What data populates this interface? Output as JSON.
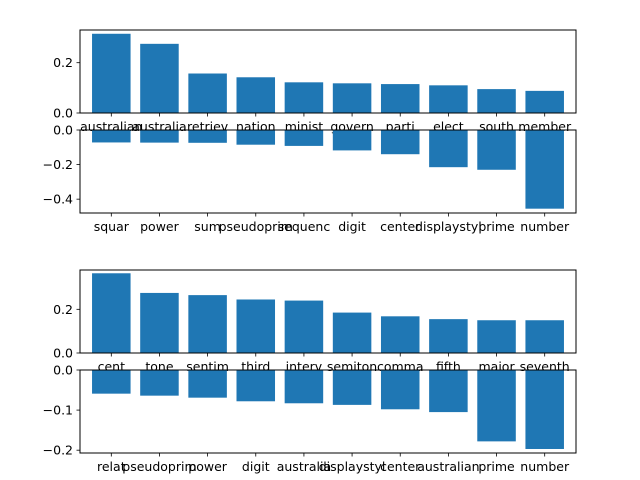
{
  "chart_data": [
    {
      "type": "bar",
      "categories": [
        "australian",
        "australia",
        "retriev",
        "nation",
        "minist",
        "govern",
        "parti",
        "elect",
        "south",
        "member"
      ],
      "values": [
        0.315,
        0.275,
        0.157,
        0.142,
        0.122,
        0.118,
        0.115,
        0.11,
        0.095,
        0.088
      ],
      "ylim": [
        0,
        0.33
      ],
      "yticks": [
        0.0,
        0.2
      ],
      "ytick_labels": [
        "0.0",
        "0.2"
      ]
    },
    {
      "type": "bar",
      "categories": [
        "squar",
        "power",
        "sum",
        "pseudoprim",
        "sequenc",
        "digit",
        "center",
        "displaystyl",
        "prime",
        "number"
      ],
      "values": [
        -0.072,
        -0.073,
        -0.074,
        -0.085,
        -0.092,
        -0.118,
        -0.14,
        -0.215,
        -0.23,
        -0.455
      ],
      "ylim": [
        -0.48,
        0
      ],
      "yticks": [
        0.0,
        -0.2,
        -0.4
      ],
      "ytick_labels": [
        "0.0",
        "−0.2",
        "−0.4"
      ]
    },
    {
      "type": "bar",
      "categories": [
        "cent",
        "tone",
        "sentim",
        "third",
        "interv",
        "semiton",
        "comma",
        "fifth",
        "major",
        "seventh"
      ],
      "values": [
        0.365,
        0.275,
        0.265,
        0.245,
        0.24,
        0.185,
        0.168,
        0.155,
        0.15,
        0.15
      ],
      "ylim": [
        0,
        0.38
      ],
      "yticks": [
        0.0,
        0.2
      ],
      "ytick_labels": [
        "0.0",
        "0.2"
      ]
    },
    {
      "type": "bar",
      "categories": [
        "relat",
        "pseudoprim",
        "power",
        "digit",
        "australia",
        "displaystyl",
        "center",
        "australian",
        "prime",
        "number"
      ],
      "values": [
        -0.059,
        -0.064,
        -0.069,
        -0.078,
        -0.083,
        -0.087,
        -0.098,
        -0.105,
        -0.178,
        -0.197
      ],
      "ylim": [
        -0.207,
        0
      ],
      "yticks": [
        0.0,
        -0.1,
        -0.2
      ],
      "ytick_labels": [
        "0.0",
        "−0.1",
        "−0.2"
      ]
    }
  ]
}
